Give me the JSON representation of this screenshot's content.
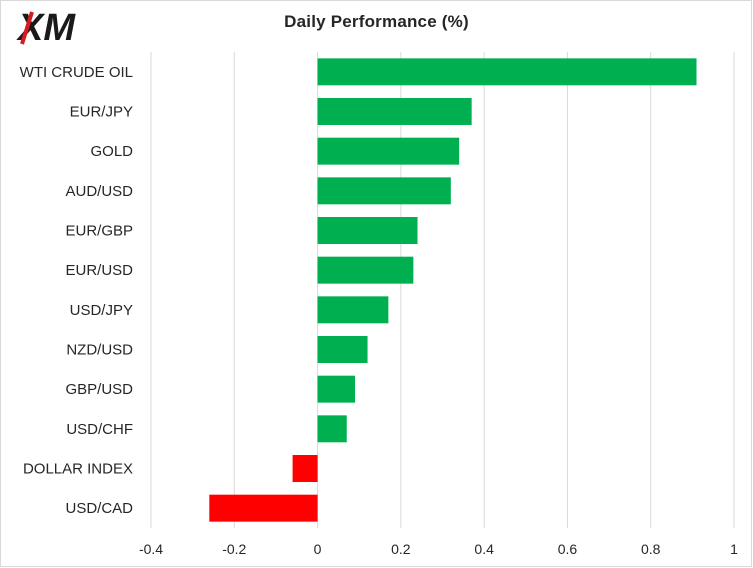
{
  "brand": {
    "logo_text": "XM"
  },
  "colors": {
    "positive": "#00B050",
    "negative": "#FF0000",
    "grid": "#D9D9D9"
  },
  "chart_data": {
    "type": "bar",
    "orientation": "horizontal",
    "title": "Daily Performance  (%)",
    "categories": [
      "WTI CRUDE OIL",
      "EUR/JPY",
      "GOLD",
      "AUD/USD",
      "EUR/GBP",
      "EUR/USD",
      "USD/JPY",
      "NZD/USD",
      "GBP/USD",
      "USD/CHF",
      "DOLLAR INDEX",
      "USD/CAD"
    ],
    "values": [
      0.91,
      0.37,
      0.34,
      0.32,
      0.24,
      0.23,
      0.17,
      0.12,
      0.09,
      0.07,
      -0.06,
      -0.26
    ],
    "xlim": [
      -0.4,
      1.0
    ],
    "xticks": [
      -0.4,
      -0.2,
      0,
      0.2,
      0.4,
      0.6,
      0.8,
      1
    ],
    "xtick_labels": [
      "-0.4",
      "-0.2",
      "0",
      "0.2",
      "0.4",
      "0.6",
      "0.8",
      "1"
    ],
    "grid": "vertical",
    "legend": "none"
  }
}
